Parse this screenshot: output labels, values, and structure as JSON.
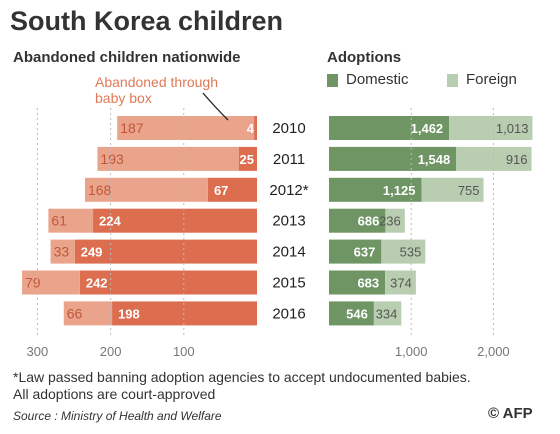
{
  "title": "South Korea children",
  "left_panel": {
    "subtitle": "Abandoned children nationwide",
    "annotation_line1": "Abandoned through",
    "annotation_line2": "baby box"
  },
  "right_panel": {
    "subtitle": "Adoptions",
    "legend_domestic": "Domestic",
    "legend_foreign": "Foreign"
  },
  "colors": {
    "abandoned_other": "#eba48c",
    "baby_box": "#dc6d4f",
    "domestic": "#6f9564",
    "foreign": "#b9ceb0",
    "annotation": "#de7a55"
  },
  "footnote_line1": "*Law passed banning adoption agencies to accept undocumented babies.",
  "footnote_line2": "All adoptions are court-approved",
  "source": "Source : Ministry of Health and Welfare",
  "credit": "© AFP",
  "chart_data": [
    {
      "type": "bar",
      "orientation": "horizontal",
      "stacked": true,
      "subtitle": "Abandoned children nationwide",
      "categories": [
        "2010",
        "2011",
        "2012*",
        "2013",
        "2014",
        "2015",
        "2016"
      ],
      "series": [
        {
          "name": "Abandoned through baby box",
          "values": [
            4,
            25,
            67,
            224,
            249,
            242,
            198
          ]
        },
        {
          "values": [
            187,
            193,
            168,
            61,
            33,
            79,
            66
          ]
        }
      ],
      "xlim": [
        0,
        300
      ],
      "x_ticks": [
        300,
        200,
        100
      ],
      "x_tick_labels": [
        "300",
        "200",
        "100"
      ],
      "direction": "right-to-left",
      "grid": false
    },
    {
      "type": "bar",
      "orientation": "horizontal",
      "stacked": true,
      "subtitle": "Adoptions",
      "categories": [
        "2010",
        "2011",
        "2012*",
        "2013",
        "2014",
        "2015",
        "2016"
      ],
      "series": [
        {
          "name": "Domestic",
          "values": [
            1462,
            1548,
            1125,
            686,
            637,
            683,
            546
          ]
        },
        {
          "name": "Foreign",
          "values": [
            1013,
            916,
            755,
            236,
            535,
            374,
            334
          ]
        }
      ],
      "x_ticks": [
        1000,
        2000
      ],
      "x_tick_labels": [
        "1,000",
        "2,000"
      ],
      "legend": "top",
      "grid": false
    }
  ]
}
